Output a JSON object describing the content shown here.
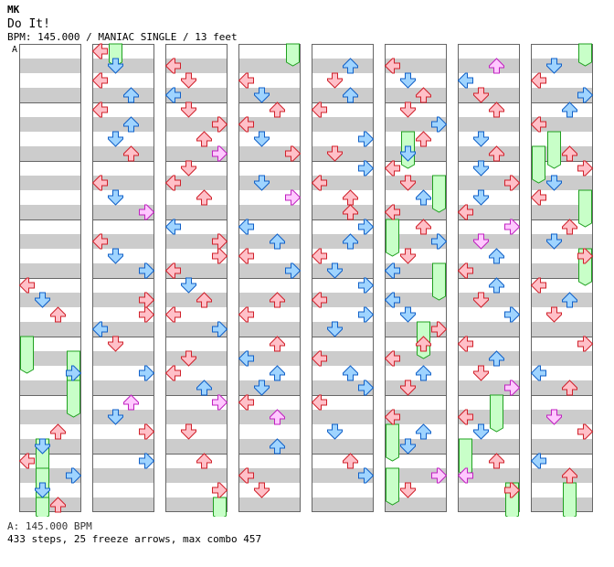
{
  "header": {
    "artist": "MK",
    "title": "Do It!",
    "info": "BPM: 145.000 / MANIAC SINGLE / 13 feet"
  },
  "section_marker": "A",
  "footer": {
    "bpm_line": "A: 145.000 BPM",
    "stats_line": "433 steps, 25 freeze arrows, max combo 457"
  },
  "colors": {
    "stripe": "#cccccc",
    "border": "#666666",
    "red_fill": "#ffc0c8",
    "red_stroke": "#d0202a",
    "blue_fill": "#9fd4ff",
    "blue_stroke": "#1060c8",
    "pink_fill": "#ffc8ff",
    "pink_stroke": "#c020c0",
    "freeze_fill": "#c8ffc8",
    "freeze_stroke": "#20a020"
  },
  "chart_data": {
    "type": "step-chart",
    "columns": 8,
    "lanes": [
      "left",
      "down",
      "up",
      "right"
    ],
    "measures_per_column": 8,
    "total_steps": 433,
    "freeze_arrows": 25,
    "max_combo": 457,
    "bpm": 145.0,
    "notes": [
      [
        0,
        4.0,
        0,
        "r"
      ],
      [
        0,
        4.25,
        1,
        "b"
      ],
      [
        0,
        4.5,
        2,
        "r"
      ],
      [
        0,
        5.5,
        3,
        "b"
      ],
      [
        0,
        6.5,
        2,
        "r"
      ],
      [
        0,
        6.75,
        1,
        "b"
      ],
      [
        0,
        7.0,
        0,
        "r"
      ],
      [
        0,
        7.25,
        3,
        "b"
      ],
      [
        0,
        7.5,
        1,
        "b"
      ],
      [
        0,
        7.75,
        2,
        "r"
      ],
      [
        1,
        0.0,
        0,
        "r"
      ],
      [
        1,
        0.25,
        1,
        "b"
      ],
      [
        1,
        0.5,
        0,
        "r"
      ],
      [
        1,
        0.75,
        2,
        "b"
      ],
      [
        1,
        1.0,
        0,
        "r"
      ],
      [
        1,
        1.25,
        2,
        "b"
      ],
      [
        1,
        1.5,
        1,
        "b"
      ],
      [
        1,
        1.75,
        2,
        "r"
      ],
      [
        1,
        2.25,
        0,
        "r"
      ],
      [
        1,
        2.5,
        1,
        "b"
      ],
      [
        1,
        2.75,
        3,
        "p"
      ],
      [
        1,
        3.25,
        0,
        "r"
      ],
      [
        1,
        3.5,
        1,
        "b"
      ],
      [
        1,
        3.75,
        3,
        "b"
      ],
      [
        1,
        4.25,
        3,
        "r"
      ],
      [
        1,
        4.5,
        3,
        "r"
      ],
      [
        1,
        4.75,
        0,
        "b"
      ],
      [
        1,
        5.0,
        1,
        "r"
      ],
      [
        1,
        5.5,
        3,
        "b"
      ],
      [
        1,
        6.0,
        2,
        "p"
      ],
      [
        1,
        6.25,
        1,
        "b"
      ],
      [
        1,
        6.5,
        3,
        "r"
      ],
      [
        1,
        7.0,
        3,
        "b"
      ],
      [
        2,
        0.25,
        0,
        "r"
      ],
      [
        2,
        0.5,
        1,
        "r"
      ],
      [
        2,
        0.75,
        0,
        "b"
      ],
      [
        2,
        1.0,
        1,
        "r"
      ],
      [
        2,
        1.25,
        3,
        "r"
      ],
      [
        2,
        1.5,
        2,
        "r"
      ],
      [
        2,
        1.75,
        3,
        "p"
      ],
      [
        2,
        2.0,
        1,
        "r"
      ],
      [
        2,
        2.25,
        0,
        "r"
      ],
      [
        2,
        2.5,
        2,
        "r"
      ],
      [
        2,
        3.0,
        0,
        "b"
      ],
      [
        2,
        3.25,
        3,
        "r"
      ],
      [
        2,
        3.5,
        3,
        "r"
      ],
      [
        2,
        3.75,
        0,
        "r"
      ],
      [
        2,
        4.0,
        1,
        "b"
      ],
      [
        2,
        4.25,
        2,
        "r"
      ],
      [
        2,
        4.5,
        0,
        "r"
      ],
      [
        2,
        4.75,
        3,
        "b"
      ],
      [
        2,
        5.25,
        1,
        "r"
      ],
      [
        2,
        5.5,
        0,
        "r"
      ],
      [
        2,
        5.75,
        2,
        "b"
      ],
      [
        2,
        6.0,
        3,
        "p"
      ],
      [
        2,
        6.5,
        1,
        "r"
      ],
      [
        2,
        7.0,
        2,
        "r"
      ],
      [
        2,
        7.5,
        3,
        "r"
      ],
      [
        3,
        0.5,
        0,
        "r"
      ],
      [
        3,
        0.75,
        1,
        "b"
      ],
      [
        3,
        1.0,
        2,
        "r"
      ],
      [
        3,
        1.25,
        0,
        "r"
      ],
      [
        3,
        1.5,
        1,
        "b"
      ],
      [
        3,
        1.75,
        3,
        "r"
      ],
      [
        3,
        2.25,
        1,
        "b"
      ],
      [
        3,
        2.5,
        3,
        "p"
      ],
      [
        3,
        3.0,
        0,
        "b"
      ],
      [
        3,
        3.25,
        2,
        "b"
      ],
      [
        3,
        3.5,
        0,
        "r"
      ],
      [
        3,
        3.75,
        3,
        "b"
      ],
      [
        3,
        4.25,
        2,
        "r"
      ],
      [
        3,
        4.5,
        0,
        "r"
      ],
      [
        3,
        5.0,
        2,
        "r"
      ],
      [
        3,
        5.25,
        0,
        "b"
      ],
      [
        3,
        5.5,
        2,
        "b"
      ],
      [
        3,
        5.75,
        1,
        "b"
      ],
      [
        3,
        6.0,
        0,
        "r"
      ],
      [
        3,
        6.25,
        2,
        "p"
      ],
      [
        3,
        6.75,
        2,
        "b"
      ],
      [
        3,
        7.25,
        0,
        "r"
      ],
      [
        3,
        7.5,
        1,
        "r"
      ],
      [
        4,
        0.25,
        2,
        "b"
      ],
      [
        4,
        0.5,
        1,
        "r"
      ],
      [
        4,
        0.75,
        2,
        "b"
      ],
      [
        4,
        1.0,
        0,
        "r"
      ],
      [
        4,
        1.5,
        3,
        "b"
      ],
      [
        4,
        1.75,
        1,
        "r"
      ],
      [
        4,
        2.0,
        3,
        "b"
      ],
      [
        4,
        2.25,
        0,
        "r"
      ],
      [
        4,
        2.5,
        2,
        "r"
      ],
      [
        4,
        2.75,
        2,
        "r"
      ],
      [
        4,
        3.0,
        3,
        "b"
      ],
      [
        4,
        3.25,
        2,
        "b"
      ],
      [
        4,
        3.5,
        0,
        "r"
      ],
      [
        4,
        3.75,
        1,
        "b"
      ],
      [
        4,
        4.0,
        3,
        "b"
      ],
      [
        4,
        4.25,
        0,
        "r"
      ],
      [
        4,
        4.5,
        3,
        "b"
      ],
      [
        4,
        4.75,
        1,
        "b"
      ],
      [
        4,
        5.25,
        0,
        "r"
      ],
      [
        4,
        5.5,
        2,
        "b"
      ],
      [
        4,
        5.75,
        3,
        "b"
      ],
      [
        4,
        6.0,
        0,
        "r"
      ],
      [
        4,
        6.5,
        1,
        "b"
      ],
      [
        4,
        7.0,
        2,
        "r"
      ],
      [
        4,
        7.25,
        3,
        "b"
      ],
      [
        5,
        0.25,
        0,
        "r"
      ],
      [
        5,
        0.5,
        1,
        "b"
      ],
      [
        5,
        0.75,
        2,
        "r"
      ],
      [
        5,
        1.0,
        1,
        "r"
      ],
      [
        5,
        1.25,
        3,
        "b"
      ],
      [
        5,
        1.5,
        2,
        "r"
      ],
      [
        5,
        1.75,
        1,
        "b"
      ],
      [
        5,
        2.0,
        0,
        "r"
      ],
      [
        5,
        2.25,
        1,
        "r"
      ],
      [
        5,
        2.5,
        2,
        "b"
      ],
      [
        5,
        2.75,
        0,
        "r"
      ],
      [
        5,
        3.0,
        2,
        "r"
      ],
      [
        5,
        3.25,
        3,
        "b"
      ],
      [
        5,
        3.5,
        1,
        "r"
      ],
      [
        5,
        3.75,
        0,
        "b"
      ],
      [
        5,
        4.25,
        0,
        "b"
      ],
      [
        5,
        4.5,
        1,
        "b"
      ],
      [
        5,
        4.75,
        3,
        "r"
      ],
      [
        5,
        5.0,
        2,
        "r"
      ],
      [
        5,
        5.25,
        0,
        "r"
      ],
      [
        5,
        5.5,
        2,
        "b"
      ],
      [
        5,
        5.75,
        1,
        "r"
      ],
      [
        5,
        6.25,
        0,
        "r"
      ],
      [
        5,
        6.5,
        2,
        "b"
      ],
      [
        5,
        6.75,
        1,
        "b"
      ],
      [
        5,
        7.25,
        3,
        "p"
      ],
      [
        5,
        7.5,
        1,
        "r"
      ],
      [
        6,
        0.25,
        2,
        "p"
      ],
      [
        6,
        0.5,
        0,
        "b"
      ],
      [
        6,
        0.75,
        1,
        "r"
      ],
      [
        6,
        1.0,
        2,
        "r"
      ],
      [
        6,
        1.5,
        1,
        "b"
      ],
      [
        6,
        1.75,
        2,
        "r"
      ],
      [
        6,
        2.0,
        1,
        "b"
      ],
      [
        6,
        2.25,
        3,
        "r"
      ],
      [
        6,
        2.5,
        1,
        "b"
      ],
      [
        6,
        2.75,
        0,
        "r"
      ],
      [
        6,
        3.0,
        3,
        "p"
      ],
      [
        6,
        3.25,
        1,
        "p"
      ],
      [
        6,
        3.5,
        2,
        "b"
      ],
      [
        6,
        3.75,
        0,
        "r"
      ],
      [
        6,
        4.0,
        2,
        "b"
      ],
      [
        6,
        4.25,
        1,
        "r"
      ],
      [
        6,
        4.5,
        3,
        "b"
      ],
      [
        6,
        5.0,
        0,
        "r"
      ],
      [
        6,
        5.25,
        2,
        "b"
      ],
      [
        6,
        5.5,
        1,
        "r"
      ],
      [
        6,
        5.75,
        3,
        "p"
      ],
      [
        6,
        6.25,
        0,
        "r"
      ],
      [
        6,
        6.5,
        1,
        "b"
      ],
      [
        6,
        7.0,
        2,
        "r"
      ],
      [
        6,
        7.25,
        0,
        "p"
      ],
      [
        6,
        7.5,
        3,
        "r"
      ],
      [
        7,
        0.25,
        1,
        "b"
      ],
      [
        7,
        0.5,
        0,
        "r"
      ],
      [
        7,
        0.75,
        3,
        "b"
      ],
      [
        7,
        1.0,
        2,
        "b"
      ],
      [
        7,
        1.25,
        0,
        "r"
      ],
      [
        7,
        1.75,
        2,
        "r"
      ],
      [
        7,
        2.0,
        3,
        "r"
      ],
      [
        7,
        2.25,
        1,
        "b"
      ],
      [
        7,
        2.5,
        0,
        "r"
      ],
      [
        7,
        3.0,
        2,
        "r"
      ],
      [
        7,
        3.25,
        1,
        "b"
      ],
      [
        7,
        3.5,
        3,
        "r"
      ],
      [
        7,
        4.0,
        0,
        "r"
      ],
      [
        7,
        4.25,
        2,
        "b"
      ],
      [
        7,
        4.5,
        1,
        "r"
      ],
      [
        7,
        5.0,
        3,
        "r"
      ],
      [
        7,
        5.5,
        0,
        "b"
      ],
      [
        7,
        5.75,
        2,
        "r"
      ],
      [
        7,
        6.25,
        1,
        "p"
      ],
      [
        7,
        6.5,
        3,
        "r"
      ],
      [
        7,
        7.0,
        0,
        "b"
      ],
      [
        7,
        7.25,
        2,
        "r"
      ]
    ],
    "freezes": [
      [
        0,
        5.0,
        5.5,
        0
      ],
      [
        0,
        5.25,
        5.75,
        3
      ],
      [
        0,
        5.75,
        6.25,
        3
      ],
      [
        0,
        6.75,
        7.25,
        1
      ],
      [
        0,
        7.25,
        7.75,
        1
      ],
      [
        0,
        7.75,
        8.0,
        1
      ],
      [
        1,
        0.0,
        0.25,
        1
      ],
      [
        2,
        7.75,
        8.0,
        3
      ],
      [
        3,
        0.0,
        0.25,
        3
      ],
      [
        5,
        1.5,
        2.0,
        1
      ],
      [
        5,
        2.25,
        2.75,
        3
      ],
      [
        5,
        3.0,
        3.5,
        0
      ],
      [
        5,
        4.75,
        5.25,
        2
      ],
      [
        5,
        6.5,
        7.0,
        0
      ],
      [
        5,
        7.25,
        7.75,
        0
      ],
      [
        5,
        3.75,
        4.25,
        3
      ],
      [
        6,
        6.0,
        6.5,
        2
      ],
      [
        6,
        6.75,
        7.25,
        0
      ],
      [
        6,
        7.5,
        8.0,
        3
      ],
      [
        7,
        0.0,
        0.25,
        3
      ],
      [
        7,
        1.5,
        2.0,
        1
      ],
      [
        7,
        1.75,
        2.25,
        0
      ],
      [
        7,
        2.5,
        3.0,
        3
      ],
      [
        7,
        3.5,
        4.0,
        3
      ],
      [
        7,
        7.5,
        8.0,
        2
      ]
    ]
  }
}
